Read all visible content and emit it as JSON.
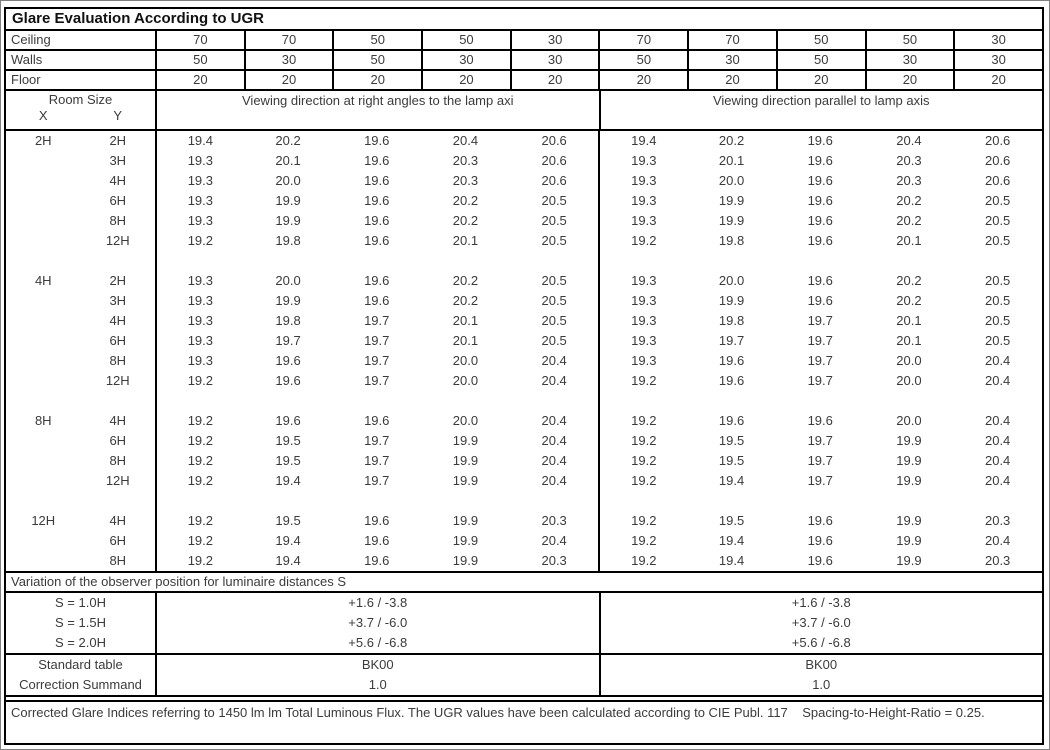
{
  "title": "Glare Evaluation According to UGR",
  "surface_rows": [
    {
      "label": "Ceiling",
      "values": [
        "70",
        "70",
        "50",
        "50",
        "30",
        "70",
        "70",
        "50",
        "50",
        "30"
      ]
    },
    {
      "label": "Walls",
      "values": [
        "50",
        "30",
        "50",
        "30",
        "30",
        "50",
        "30",
        "50",
        "30",
        "30"
      ]
    },
    {
      "label": "Floor",
      "values": [
        "20",
        "20",
        "20",
        "20",
        "20",
        "20",
        "20",
        "20",
        "20",
        "20"
      ]
    }
  ],
  "header": {
    "room_size_label": "Room Size",
    "x_label": "X",
    "y_label": "Y",
    "left_direction": "Viewing direction at right angles to the lamp axi",
    "right_direction": "Viewing direction parallel to lamp axis"
  },
  "ugr_groups": [
    {
      "x": "2H",
      "rows": [
        {
          "y": "2H",
          "left": [
            "19.4",
            "20.2",
            "19.6",
            "20.4",
            "20.6"
          ],
          "right": [
            "19.4",
            "20.2",
            "19.6",
            "20.4",
            "20.6"
          ]
        },
        {
          "y": "3H",
          "left": [
            "19.3",
            "20.1",
            "19.6",
            "20.3",
            "20.6"
          ],
          "right": [
            "19.3",
            "20.1",
            "19.6",
            "20.3",
            "20.6"
          ]
        },
        {
          "y": "4H",
          "left": [
            "19.3",
            "20.0",
            "19.6",
            "20.3",
            "20.6"
          ],
          "right": [
            "19.3",
            "20.0",
            "19.6",
            "20.3",
            "20.6"
          ]
        },
        {
          "y": "6H",
          "left": [
            "19.3",
            "19.9",
            "19.6",
            "20.2",
            "20.5"
          ],
          "right": [
            "19.3",
            "19.9",
            "19.6",
            "20.2",
            "20.5"
          ]
        },
        {
          "y": "8H",
          "left": [
            "19.3",
            "19.9",
            "19.6",
            "20.2",
            "20.5"
          ],
          "right": [
            "19.3",
            "19.9",
            "19.6",
            "20.2",
            "20.5"
          ]
        },
        {
          "y": "12H",
          "left": [
            "19.2",
            "19.8",
            "19.6",
            "20.1",
            "20.5"
          ],
          "right": [
            "19.2",
            "19.8",
            "19.6",
            "20.1",
            "20.5"
          ]
        }
      ]
    },
    {
      "x": "4H",
      "rows": [
        {
          "y": "2H",
          "left": [
            "19.3",
            "20.0",
            "19.6",
            "20.2",
            "20.5"
          ],
          "right": [
            "19.3",
            "20.0",
            "19.6",
            "20.2",
            "20.5"
          ]
        },
        {
          "y": "3H",
          "left": [
            "19.3",
            "19.9",
            "19.6",
            "20.2",
            "20.5"
          ],
          "right": [
            "19.3",
            "19.9",
            "19.6",
            "20.2",
            "20.5"
          ]
        },
        {
          "y": "4H",
          "left": [
            "19.3",
            "19.8",
            "19.7",
            "20.1",
            "20.5"
          ],
          "right": [
            "19.3",
            "19.8",
            "19.7",
            "20.1",
            "20.5"
          ]
        },
        {
          "y": "6H",
          "left": [
            "19.3",
            "19.7",
            "19.7",
            "20.1",
            "20.5"
          ],
          "right": [
            "19.3",
            "19.7",
            "19.7",
            "20.1",
            "20.5"
          ]
        },
        {
          "y": "8H",
          "left": [
            "19.3",
            "19.6",
            "19.7",
            "20.0",
            "20.4"
          ],
          "right": [
            "19.3",
            "19.6",
            "19.7",
            "20.0",
            "20.4"
          ]
        },
        {
          "y": "12H",
          "left": [
            "19.2",
            "19.6",
            "19.7",
            "20.0",
            "20.4"
          ],
          "right": [
            "19.2",
            "19.6",
            "19.7",
            "20.0",
            "20.4"
          ]
        }
      ]
    },
    {
      "x": "8H",
      "rows": [
        {
          "y": "4H",
          "left": [
            "19.2",
            "19.6",
            "19.6",
            "20.0",
            "20.4"
          ],
          "right": [
            "19.2",
            "19.6",
            "19.6",
            "20.0",
            "20.4"
          ]
        },
        {
          "y": "6H",
          "left": [
            "19.2",
            "19.5",
            "19.7",
            "19.9",
            "20.4"
          ],
          "right": [
            "19.2",
            "19.5",
            "19.7",
            "19.9",
            "20.4"
          ]
        },
        {
          "y": "8H",
          "left": [
            "19.2",
            "19.5",
            "19.7",
            "19.9",
            "20.4"
          ],
          "right": [
            "19.2",
            "19.5",
            "19.7",
            "19.9",
            "20.4"
          ]
        },
        {
          "y": "12H",
          "left": [
            "19.2",
            "19.4",
            "19.7",
            "19.9",
            "20.4"
          ],
          "right": [
            "19.2",
            "19.4",
            "19.7",
            "19.9",
            "20.4"
          ]
        }
      ]
    },
    {
      "x": "12H",
      "rows": [
        {
          "y": "4H",
          "left": [
            "19.2",
            "19.5",
            "19.6",
            "19.9",
            "20.3"
          ],
          "right": [
            "19.2",
            "19.5",
            "19.6",
            "19.9",
            "20.3"
          ]
        },
        {
          "y": "6H",
          "left": [
            "19.2",
            "19.4",
            "19.6",
            "19.9",
            "20.4"
          ],
          "right": [
            "19.2",
            "19.4",
            "19.6",
            "19.9",
            "20.4"
          ]
        },
        {
          "y": "8H",
          "left": [
            "19.2",
            "19.4",
            "19.6",
            "19.9",
            "20.3"
          ],
          "right": [
            "19.2",
            "19.4",
            "19.6",
            "19.9",
            "20.3"
          ]
        }
      ]
    }
  ],
  "variation_label": "Variation of the observer position for luminaire distances S",
  "variation_rows": [
    {
      "label": "S = 1.0H",
      "left": "+1.6 / -3.8",
      "right": "+1.6 / -3.8"
    },
    {
      "label": "S = 1.5H",
      "left": "+3.7 / -6.0",
      "right": "+3.7 / -6.0"
    },
    {
      "label": "S = 2.0H",
      "left": "+5.6 / -6.8",
      "right": "+5.6 / -6.8"
    }
  ],
  "summary_rows": [
    {
      "label": "Standard table",
      "left": "BK00",
      "right": "BK00"
    },
    {
      "label": "Correction Summand",
      "left": "1.0",
      "right": "1.0"
    }
  ],
  "footer": "Corrected Glare Indices referring to 1450 lm lm Total Luminous Flux. The UGR values have been calculated according to CIE Publ. 117    Spacing-to-Height-Ratio = 0.25.",
  "colors": {
    "border": "#000000",
    "text": "#3b3b3b",
    "background": "#ffffff",
    "frame": "#7f7f7f"
  }
}
